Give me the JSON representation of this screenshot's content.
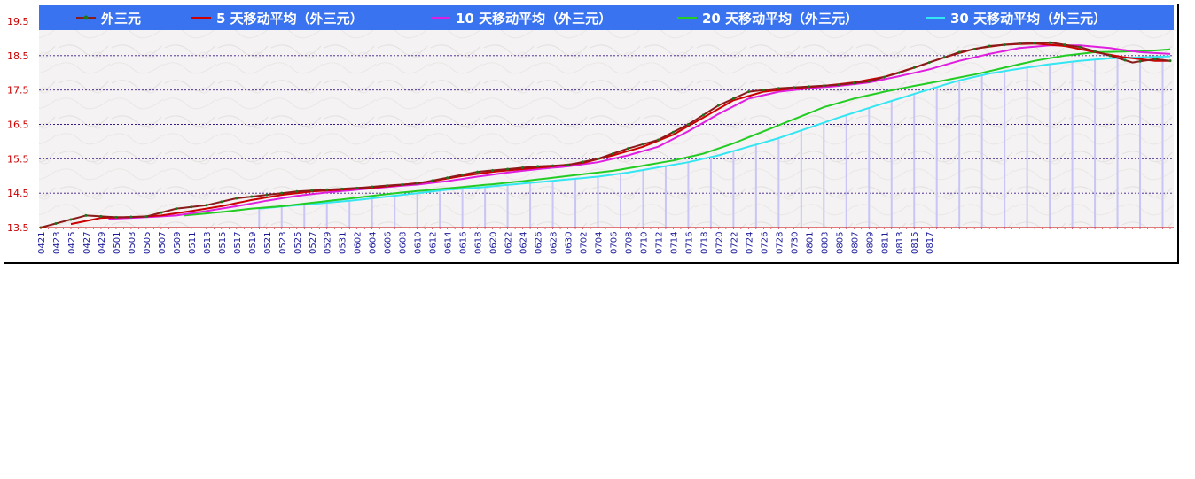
{
  "chart_data": {
    "type": "line",
    "title": "",
    "xlabel": "",
    "ylabel": "",
    "ylim": [
      13.5,
      19.5
    ],
    "yticks": [
      "13.5",
      "14.5",
      "15.5",
      "16.5",
      "17.5",
      "18.5",
      "19.5"
    ],
    "grid": true,
    "legend_position": "top",
    "x_tick_labels": [
      "0421",
      "0423",
      "0425",
      "0427",
      "0429",
      "0501",
      "0503",
      "0505",
      "0507",
      "0509",
      "0511",
      "0513",
      "0515",
      "0517",
      "0519",
      "0521",
      "0523",
      "0525",
      "0527",
      "0529",
      "0531",
      "0602",
      "0604",
      "0606",
      "0608",
      "0610",
      "0612",
      "0614",
      "0616",
      "0618",
      "0620",
      "0622",
      "0624",
      "0626",
      "0628",
      "0630",
      "0702",
      "0704",
      "0706",
      "0708",
      "0710",
      "0712",
      "0714",
      "0716",
      "0718",
      "0720",
      "0722",
      "0724",
      "0726",
      "0728",
      "0730",
      "0801",
      "0803",
      "0805",
      "0807",
      "0809",
      "0811",
      "0813",
      "0815",
      "0817"
    ],
    "anchors": [
      {
        "name": "外三元",
        "color": "#1a7a1a",
        "line_color": "#8b1a1a",
        "marker": true,
        "start": 0,
        "points": [
          [
            0,
            13.5
          ],
          [
            6,
            13.85
          ],
          [
            10,
            13.8
          ],
          [
            14,
            13.82
          ],
          [
            18,
            14.05
          ],
          [
            22,
            14.15
          ],
          [
            26,
            14.35
          ],
          [
            30,
            14.45
          ],
          [
            34,
            14.55
          ],
          [
            38,
            14.6
          ],
          [
            42,
            14.65
          ],
          [
            46,
            14.72
          ],
          [
            50,
            14.78
          ],
          [
            54,
            14.95
          ],
          [
            58,
            15.12
          ],
          [
            62,
            15.2
          ],
          [
            66,
            15.28
          ],
          [
            70,
            15.32
          ],
          [
            74,
            15.5
          ],
          [
            78,
            15.8
          ],
          [
            82,
            16.05
          ],
          [
            86,
            16.5
          ],
          [
            90,
            17.05
          ],
          [
            94,
            17.45
          ],
          [
            98,
            17.55
          ],
          [
            102,
            17.6
          ],
          [
            106,
            17.65
          ],
          [
            110,
            17.75
          ],
          [
            114,
            18.0
          ],
          [
            118,
            18.3
          ],
          [
            122,
            18.6
          ],
          [
            126,
            18.78
          ],
          [
            130,
            18.85
          ],
          [
            134,
            18.88
          ],
          [
            138,
            18.75
          ],
          [
            142,
            18.5
          ],
          [
            145,
            18.3
          ],
          [
            148,
            18.4
          ],
          [
            150,
            18.35
          ]
        ]
      },
      {
        "name": "5 天移动平均（外三元）",
        "color": "#cc0000",
        "marker": false,
        "start": 4,
        "points": [
          [
            4,
            13.6
          ],
          [
            8,
            13.78
          ],
          [
            12,
            13.8
          ],
          [
            16,
            13.85
          ],
          [
            20,
            13.98
          ],
          [
            24,
            14.12
          ],
          [
            28,
            14.3
          ],
          [
            32,
            14.45
          ],
          [
            36,
            14.55
          ],
          [
            40,
            14.6
          ],
          [
            44,
            14.66
          ],
          [
            48,
            14.74
          ],
          [
            52,
            14.85
          ],
          [
            56,
            15.0
          ],
          [
            60,
            15.12
          ],
          [
            64,
            15.2
          ],
          [
            68,
            15.28
          ],
          [
            72,
            15.38
          ],
          [
            76,
            15.6
          ],
          [
            80,
            15.85
          ],
          [
            84,
            16.2
          ],
          [
            88,
            16.7
          ],
          [
            92,
            17.2
          ],
          [
            96,
            17.45
          ],
          [
            100,
            17.55
          ],
          [
            104,
            17.62
          ],
          [
            108,
            17.72
          ],
          [
            112,
            17.88
          ],
          [
            116,
            18.15
          ],
          [
            120,
            18.45
          ],
          [
            124,
            18.7
          ],
          [
            128,
            18.82
          ],
          [
            132,
            18.85
          ],
          [
            136,
            18.78
          ],
          [
            140,
            18.6
          ],
          [
            144,
            18.45
          ],
          [
            148,
            18.35
          ],
          [
            150,
            18.35
          ]
        ]
      },
      {
        "name": "10 天移动平均（外三元）",
        "color": "#e01ee0",
        "marker": false,
        "start": 9,
        "points": [
          [
            9,
            13.75
          ],
          [
            14,
            13.8
          ],
          [
            18,
            13.85
          ],
          [
            22,
            13.98
          ],
          [
            26,
            14.12
          ],
          [
            30,
            14.28
          ],
          [
            34,
            14.42
          ],
          [
            38,
            14.52
          ],
          [
            42,
            14.6
          ],
          [
            46,
            14.68
          ],
          [
            50,
            14.75
          ],
          [
            54,
            14.85
          ],
          [
            58,
            14.98
          ],
          [
            62,
            15.1
          ],
          [
            66,
            15.2
          ],
          [
            70,
            15.28
          ],
          [
            74,
            15.4
          ],
          [
            78,
            15.6
          ],
          [
            82,
            15.85
          ],
          [
            86,
            16.3
          ],
          [
            90,
            16.8
          ],
          [
            94,
            17.25
          ],
          [
            98,
            17.45
          ],
          [
            102,
            17.55
          ],
          [
            106,
            17.62
          ],
          [
            110,
            17.72
          ],
          [
            114,
            17.9
          ],
          [
            118,
            18.1
          ],
          [
            122,
            18.35
          ],
          [
            126,
            18.55
          ],
          [
            130,
            18.72
          ],
          [
            134,
            18.8
          ],
          [
            138,
            18.8
          ],
          [
            142,
            18.72
          ],
          [
            146,
            18.6
          ],
          [
            150,
            18.55
          ]
        ]
      },
      {
        "name": "20 天移动平均（外三元）",
        "color": "#22cc22",
        "marker": false,
        "start": 19,
        "points": [
          [
            19,
            13.85
          ],
          [
            24,
            13.95
          ],
          [
            28,
            14.05
          ],
          [
            32,
            14.12
          ],
          [
            36,
            14.22
          ],
          [
            40,
            14.32
          ],
          [
            44,
            14.42
          ],
          [
            48,
            14.52
          ],
          [
            52,
            14.6
          ],
          [
            56,
            14.68
          ],
          [
            60,
            14.76
          ],
          [
            64,
            14.85
          ],
          [
            68,
            14.95
          ],
          [
            72,
            15.05
          ],
          [
            76,
            15.15
          ],
          [
            80,
            15.3
          ],
          [
            84,
            15.45
          ],
          [
            88,
            15.65
          ],
          [
            92,
            15.95
          ],
          [
            96,
            16.3
          ],
          [
            100,
            16.65
          ],
          [
            104,
            17.0
          ],
          [
            108,
            17.25
          ],
          [
            112,
            17.45
          ],
          [
            116,
            17.62
          ],
          [
            120,
            17.78
          ],
          [
            124,
            17.95
          ],
          [
            128,
            18.15
          ],
          [
            132,
            18.35
          ],
          [
            136,
            18.5
          ],
          [
            140,
            18.6
          ],
          [
            144,
            18.62
          ],
          [
            148,
            18.65
          ],
          [
            150,
            18.68
          ]
        ]
      },
      {
        "name": "30 天移动平均（外三元）",
        "color": "#33e6f2",
        "marker": false,
        "start": 29,
        "points": [
          [
            29,
            14.05
          ],
          [
            34,
            14.15
          ],
          [
            38,
            14.22
          ],
          [
            42,
            14.3
          ],
          [
            46,
            14.4
          ],
          [
            50,
            14.5
          ],
          [
            54,
            14.6
          ],
          [
            58,
            14.66
          ],
          [
            62,
            14.74
          ],
          [
            66,
            14.82
          ],
          [
            70,
            14.9
          ],
          [
            74,
            14.98
          ],
          [
            78,
            15.1
          ],
          [
            82,
            15.25
          ],
          [
            86,
            15.4
          ],
          [
            90,
            15.6
          ],
          [
            94,
            15.85
          ],
          [
            98,
            16.1
          ],
          [
            102,
            16.4
          ],
          [
            106,
            16.7
          ],
          [
            110,
            16.98
          ],
          [
            114,
            17.25
          ],
          [
            118,
            17.52
          ],
          [
            122,
            17.78
          ],
          [
            126,
            17.98
          ],
          [
            130,
            18.12
          ],
          [
            134,
            18.25
          ],
          [
            138,
            18.35
          ],
          [
            142,
            18.42
          ],
          [
            146,
            18.45
          ],
          [
            150,
            18.48
          ]
        ]
      }
    ]
  }
}
